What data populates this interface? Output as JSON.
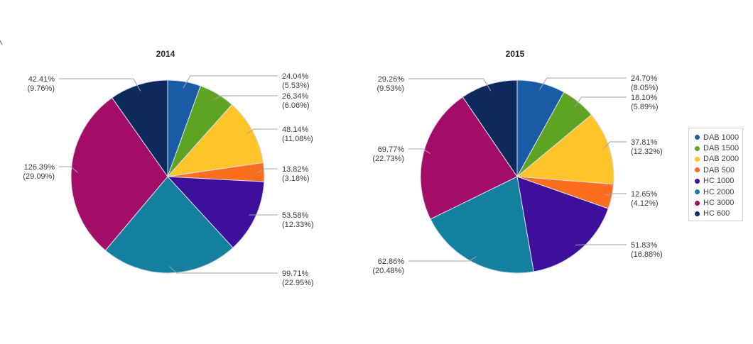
{
  "page": {
    "background": "#ffffff"
  },
  "legend": {
    "position": "right",
    "items": [
      {
        "label": "DAB 1000",
        "color": "#1A5BA6"
      },
      {
        "label": "DAB 1500",
        "color": "#5EA321"
      },
      {
        "label": "DAB 2000",
        "color": "#FFC428"
      },
      {
        "label": "DAB 500",
        "color": "#FA6E1E"
      },
      {
        "label": "HC 1000",
        "color": "#3D0F9B"
      },
      {
        "label": "HC 2000",
        "color": "#12809E"
      },
      {
        "label": "HC 3000",
        "color": "#A30D68"
      },
      {
        "label": "HC 600",
        "color": "#0E2A5C"
      }
    ]
  },
  "chart_data": [
    {
      "type": "pie",
      "title": "2014",
      "legend_position": "right",
      "label_format": "value% (share%)",
      "slices": [
        {
          "name": "DAB 1000",
          "value_label": "24.04%",
          "share_label": "(5.53%)",
          "value_pct": 24.04,
          "share_pct": 5.53
        },
        {
          "name": "DAB 1500",
          "value_label": "26.34%",
          "share_label": "(6.06%)",
          "value_pct": 26.34,
          "share_pct": 6.06
        },
        {
          "name": "DAB 2000",
          "value_label": "48.14%",
          "share_label": "(11.08%)",
          "value_pct": 48.14,
          "share_pct": 11.08
        },
        {
          "name": "DAB 500",
          "value_label": "13.82%",
          "share_label": "(3.18%)",
          "value_pct": 13.82,
          "share_pct": 3.18
        },
        {
          "name": "HC 1000",
          "value_label": "53.58%",
          "share_label": "(12.33%)",
          "value_pct": 53.58,
          "share_pct": 12.33
        },
        {
          "name": "HC 2000",
          "value_label": "99.71%",
          "share_label": "(22.95%)",
          "value_pct": 99.71,
          "share_pct": 22.95
        },
        {
          "name": "HC 3000",
          "value_label": "126.39%",
          "share_label": "(29.09%)",
          "value_pct": 126.39,
          "share_pct": 29.09
        },
        {
          "name": "HC 600",
          "value_label": "42.41%",
          "share_label": "(9.76%)",
          "value_pct": 42.41,
          "share_pct": 9.76
        }
      ]
    },
    {
      "type": "pie",
      "title": "2015",
      "legend_position": "right",
      "label_format": "value% (share%)",
      "slices": [
        {
          "name": "DAB 1000",
          "value_label": "24.70%",
          "share_label": "(8.05%)",
          "value_pct": 24.7,
          "share_pct": 8.05
        },
        {
          "name": "DAB 1500",
          "value_label": "18.10%",
          "share_label": "(5.89%)",
          "value_pct": 18.1,
          "share_pct": 5.89
        },
        {
          "name": "DAB 2000",
          "value_label": "37.81%",
          "share_label": "(12.32%)",
          "value_pct": 37.81,
          "share_pct": 12.32
        },
        {
          "name": "DAB 500",
          "value_label": "12.65%",
          "share_label": "(4.12%)",
          "value_pct": 12.65,
          "share_pct": 4.12
        },
        {
          "name": "HC 1000",
          "value_label": "51.83%",
          "share_label": "(16.88%)",
          "value_pct": 51.83,
          "share_pct": 16.88
        },
        {
          "name": "HC 2000",
          "value_label": "62.86%",
          "share_label": "(20.48%)",
          "value_pct": 62.86,
          "share_pct": 20.48
        },
        {
          "name": "HC 3000",
          "value_label": "69.77%",
          "share_label": "(22.73%)",
          "value_pct": 69.77,
          "share_pct": 22.73
        },
        {
          "name": "HC 600",
          "value_label": "29.26%",
          "share_label": "(9.53%)",
          "value_pct": 29.26,
          "share_pct": 9.53
        }
      ]
    }
  ]
}
